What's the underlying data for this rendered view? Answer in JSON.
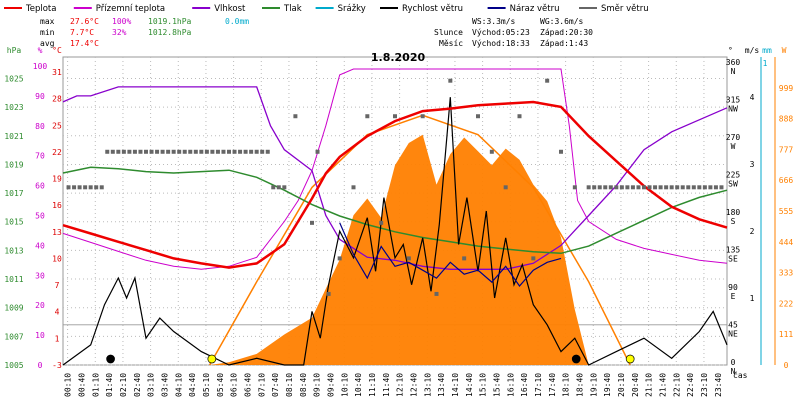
{
  "chart_data": {
    "type": "line",
    "title": "1.8.2020",
    "xlabel": "čas",
    "x_ticks": [
      "00:10",
      "00:40",
      "01:10",
      "01:40",
      "02:10",
      "02:40",
      "03:10",
      "03:40",
      "04:10",
      "04:40",
      "05:10",
      "05:40",
      "06:10",
      "06:40",
      "07:10",
      "07:40",
      "08:10",
      "08:40",
      "09:10",
      "09:40",
      "10:10",
      "10:40",
      "11:10",
      "11:40",
      "12:10",
      "12:40",
      "13:10",
      "13:40",
      "14:10",
      "14:40",
      "15:10",
      "15:40",
      "16:10",
      "16:40",
      "17:10",
      "17:40",
      "18:10",
      "18:40",
      "19:10",
      "19:40",
      "20:10",
      "20:40",
      "21:10",
      "21:40",
      "22:10",
      "22:40",
      "23:10",
      "23:40"
    ],
    "axes": {
      "hpa": {
        "label": "hPa",
        "color": "#2e8b2e",
        "ticks": [
          "1025",
          "1023",
          "1021",
          "1019",
          "1017",
          "1015",
          "1013",
          "1011",
          "1009",
          "1007",
          "1005"
        ],
        "range": [
          1005,
          1026.5
        ]
      },
      "pct": {
        "label": "%",
        "color": "#cc00cc",
        "ticks": [
          "100",
          "90",
          "80",
          "70",
          "60",
          "50",
          "40",
          "30",
          "20",
          "10",
          "0"
        ],
        "range": [
          0,
          103
        ]
      },
      "degc": {
        "label": "°C",
        "color": "#dd0000",
        "ticks": [
          "31",
          "28",
          "25",
          "22",
          "19",
          "16",
          "13",
          "10",
          "7",
          "4",
          "1",
          "-3"
        ]
      },
      "deg": {
        "label": "°",
        "color": "#000000",
        "ticks": [
          {
            "v": "360",
            "d": "N"
          },
          {
            "v": "315",
            "d": "NW"
          },
          {
            "v": "270",
            "d": "W"
          },
          {
            "v": "225",
            "d": "SW"
          },
          {
            "v": "180",
            "d": "S"
          },
          {
            "v": "135",
            "d": "SE"
          },
          {
            "v": "90",
            "d": "E"
          },
          {
            "v": "45",
            "d": "NE"
          },
          {
            "v": "0",
            "d": "N"
          }
        ]
      },
      "ms": {
        "label": "m/s",
        "color": "#000000",
        "ticks": [
          "4",
          "3",
          "2",
          "1"
        ],
        "range": [
          0,
          4.6
        ]
      },
      "mm": {
        "label": "mm",
        "color": "#00aacc",
        "ticks": [
          "1"
        ]
      },
      "wm2": {
        "label": "W",
        "color": "#ff8000",
        "ticks": [
          "999",
          "888",
          "777",
          "666",
          "555",
          "444",
          "333",
          "222",
          "111",
          "0"
        ],
        "range": [
          0,
          1110
        ]
      }
    },
    "legend": [
      {
        "name": "Teplota",
        "color": "#ee0000"
      },
      {
        "name": "Přízemní teplota",
        "color": "#cc00cc"
      },
      {
        "name": "Vlhkost",
        "color": "#8800cc"
      },
      {
        "name": "Tlak",
        "color": "#2e8b2e"
      },
      {
        "name": "Srážky",
        "color": "#00aacc"
      },
      {
        "name": "Rychlost větru",
        "color": "#000000"
      },
      {
        "name": "Náraz větru",
        "color": "#000088"
      },
      {
        "name": "Směr větru",
        "color": "#666666"
      }
    ],
    "stats": {
      "max": {
        "label": "max",
        "temp": "27.6°C",
        "hum": "100%",
        "press": "1019.1hPa",
        "rain": "0.0mm"
      },
      "min": {
        "label": "min",
        "temp": "7.7°C",
        "hum": "32%",
        "press": "1012.8hPa"
      },
      "avg": {
        "label": "avg",
        "temp": "17.4°C"
      }
    },
    "info": {
      "ws": "WS:3.3m/s",
      "wg": "WG:3.6m/s",
      "sun_label": "Slunce",
      "sunrise": "Východ:05:23",
      "sunset": "Západ:20:30",
      "moon_label": "Měsíc",
      "moonrise": "Východ:18:33",
      "moonset": "Západ:1:43"
    },
    "series": [
      {
        "name": "Teplota",
        "axis": "degc",
        "hours": [
          0,
          1,
          2,
          3,
          4,
          5,
          6,
          7,
          8,
          9,
          9.5,
          10,
          11,
          12,
          13,
          14,
          15,
          16,
          17,
          18,
          19,
          20,
          21,
          22,
          23,
          24
        ],
        "values": [
          12.8,
          11.8,
          10.8,
          9.8,
          8.8,
          8.2,
          7.7,
          8.2,
          10.5,
          16,
          19,
          21,
          23.5,
          25.3,
          26.5,
          26.8,
          27.2,
          27.4,
          27.6,
          27.0,
          23.5,
          20.5,
          17.5,
          15,
          13.5,
          12.5
        ]
      },
      {
        "name": "Vlhkost",
        "axis": "pct",
        "hours": [
          0,
          0.5,
          1,
          2,
          3,
          4,
          5,
          6,
          7,
          7.5,
          8,
          9,
          9.5,
          10,
          11,
          12,
          13,
          14,
          15,
          16,
          17,
          18,
          18.5,
          19,
          20,
          21,
          22,
          23,
          24
        ],
        "values": [
          88,
          90,
          90,
          93,
          93,
          93,
          93,
          93,
          93,
          80,
          72,
          65,
          50,
          42,
          36,
          35,
          33,
          32,
          32,
          32,
          34,
          40,
          45,
          50,
          60,
          72,
          78,
          82,
          86
        ]
      },
      {
        "name": "Přízemní teplota",
        "axis": "pct",
        "hours": [
          0,
          1,
          2,
          3,
          4,
          5,
          6,
          7,
          8,
          8.5,
          9,
          9.5,
          10,
          10.5,
          11,
          12,
          13,
          14,
          15,
          16,
          17,
          18,
          18.3,
          18.6,
          19,
          20,
          21,
          22,
          23,
          24
        ],
        "values": [
          44,
          41,
          38,
          35,
          33,
          32,
          33,
          36,
          48,
          55,
          65,
          80,
          97,
          99,
          99,
          99,
          99,
          99,
          99,
          99,
          99,
          99,
          80,
          55,
          48,
          42,
          39,
          37,
          35,
          34
        ]
      },
      {
        "name": "Tlak",
        "axis": "hpa",
        "hours": [
          0,
          1,
          2,
          3,
          4,
          5,
          6,
          7,
          8,
          9,
          10,
          11,
          12,
          13,
          14,
          15,
          16,
          17,
          18,
          19,
          20,
          21,
          22,
          23,
          24
        ],
        "values": [
          1018.4,
          1018.8,
          1018.7,
          1018.5,
          1018.4,
          1018.5,
          1018.6,
          1018.1,
          1017.2,
          1016.2,
          1015.4,
          1014.8,
          1014.3,
          1013.9,
          1013.6,
          1013.3,
          1013.1,
          1012.9,
          1012.8,
          1013.3,
          1014.2,
          1015.1,
          1016.0,
          1016.7,
          1017.2
        ]
      },
      {
        "name": "Solar",
        "axis": "wm2",
        "hours": [
          0,
          5.3,
          6,
          7,
          8,
          9,
          10,
          10.5,
          11,
          11.5,
          12,
          12.5,
          13,
          13.5,
          14,
          14.5,
          15,
          15.5,
          16,
          16.5,
          17,
          17.5,
          18,
          18.5,
          19,
          24
        ],
        "values": [
          0,
          0,
          10,
          40,
          110,
          170,
          380,
          540,
          600,
          530,
          720,
          800,
          830,
          650,
          760,
          820,
          770,
          720,
          780,
          740,
          650,
          590,
          460,
          200,
          0,
          0
        ]
      },
      {
        "name": "Teoretické záření",
        "axis": "wm2",
        "hours": [
          5.3,
          7,
          9,
          11,
          13,
          15,
          17,
          19,
          20.5
        ],
        "values": [
          0,
          300,
          640,
          830,
          900,
          830,
          640,
          300,
          0
        ]
      },
      {
        "name": "Rychlost větru",
        "axis": "ms",
        "hours": [
          0,
          1,
          1.5,
          2,
          2.3,
          2.6,
          3,
          3.5,
          4,
          5,
          6,
          7,
          8,
          8.7,
          9,
          9.3,
          9.6,
          10,
          10.5,
          11,
          11.3,
          11.6,
          12,
          12.3,
          12.6,
          13,
          13.3,
          13.6,
          14,
          14.3,
          14.6,
          15,
          15.3,
          15.6,
          16,
          16.3,
          16.6,
          17,
          17.5,
          18,
          18.5,
          19,
          20,
          21,
          22,
          23,
          23.5,
          24
        ],
        "values": [
          0,
          0.3,
          0.9,
          1.3,
          1.0,
          1.3,
          0.4,
          0.7,
          0.5,
          0.2,
          0,
          0.1,
          0,
          0,
          0.8,
          0.4,
          1.2,
          2.0,
          1.6,
          2.2,
          1.4,
          2.5,
          1.6,
          1.8,
          1.2,
          1.9,
          1.1,
          2.1,
          4.0,
          1.8,
          2.5,
          1.4,
          2.3,
          1.0,
          1.9,
          1.2,
          1.5,
          0.9,
          0.6,
          0.2,
          0.4,
          0,
          0.2,
          0.4,
          0.1,
          0.5,
          0.8,
          0.3
        ]
      },
      {
        "name": "Náraz větru",
        "axis": "deg",
        "hours": [
          10,
          10.5,
          11,
          11.5,
          12,
          12.5,
          13,
          13.5,
          14,
          14.5,
          15,
          15.5,
          16,
          16.5,
          17,
          17.5,
          18
        ],
        "values": [
          180,
          140,
          110,
          150,
          125,
          130,
          120,
          110,
          130,
          115,
          120,
          105,
          125,
          100,
          120,
          130,
          135
        ]
      }
    ],
    "wind_direction_points": {
      "axis": "deg",
      "hours": [
        0.2,
        0.4,
        0.6,
        0.8,
        1.0,
        1.2,
        1.4,
        1.6,
        1.8,
        2.0,
        2.2,
        2.4,
        2.6,
        2.8,
        3.0,
        3.2,
        3.4,
        3.6,
        3.8,
        4.0,
        4.2,
        4.4,
        4.6,
        4.8,
        5.0,
        5.2,
        5.4,
        5.6,
        5.8,
        6.0,
        6.2,
        6.4,
        6.6,
        6.8,
        7.0,
        7.2,
        7.4,
        7.6,
        7.8,
        8.0,
        8.4,
        9.0,
        9.2,
        9.6,
        10.0,
        10.5,
        11,
        11.5,
        12,
        12.5,
        13,
        13.5,
        14,
        14.5,
        15,
        15.5,
        16,
        16.5,
        17,
        17.5,
        18,
        18.5,
        19.0,
        19.2,
        19.4,
        19.6,
        19.8,
        20.0,
        20.2,
        20.4,
        20.6,
        20.8,
        21.0,
        21.2,
        21.4,
        21.6,
        21.8,
        22.0,
        22.2,
        22.4,
        22.6,
        22.8,
        23.0,
        23.2,
        23.4,
        23.6,
        23.8
      ],
      "values": [
        225,
        225,
        225,
        225,
        225,
        225,
        225,
        270,
        270,
        270,
        270,
        270,
        270,
        270,
        270,
        270,
        270,
        270,
        270,
        270,
        270,
        270,
        270,
        270,
        270,
        270,
        270,
        270,
        270,
        270,
        270,
        270,
        270,
        270,
        270,
        270,
        270,
        225,
        225,
        225,
        315,
        180,
        270,
        90,
        135,
        225,
        315,
        180,
        315,
        135,
        315,
        90,
        360,
        135,
        315,
        270,
        225,
        315,
        135,
        360,
        270,
        225,
        225,
        225,
        225,
        225,
        225,
        225,
        225,
        225,
        225,
        225,
        225,
        225,
        225,
        225,
        225,
        225,
        225,
        225,
        225,
        225,
        225,
        225,
        225,
        225,
        225
      ]
    },
    "day_markers": [
      {
        "name": "Měsíc západ",
        "hour": 1.72,
        "color": "#000000"
      },
      {
        "name": "Slunce východ",
        "hour": 5.38,
        "color": "#ffff00"
      },
      {
        "name": "Měsíc východ",
        "hour": 18.55,
        "color": "#000000"
      },
      {
        "name": "Slunce západ",
        "hour": 20.5,
        "color": "#ffff00"
      }
    ],
    "grid": true
  }
}
